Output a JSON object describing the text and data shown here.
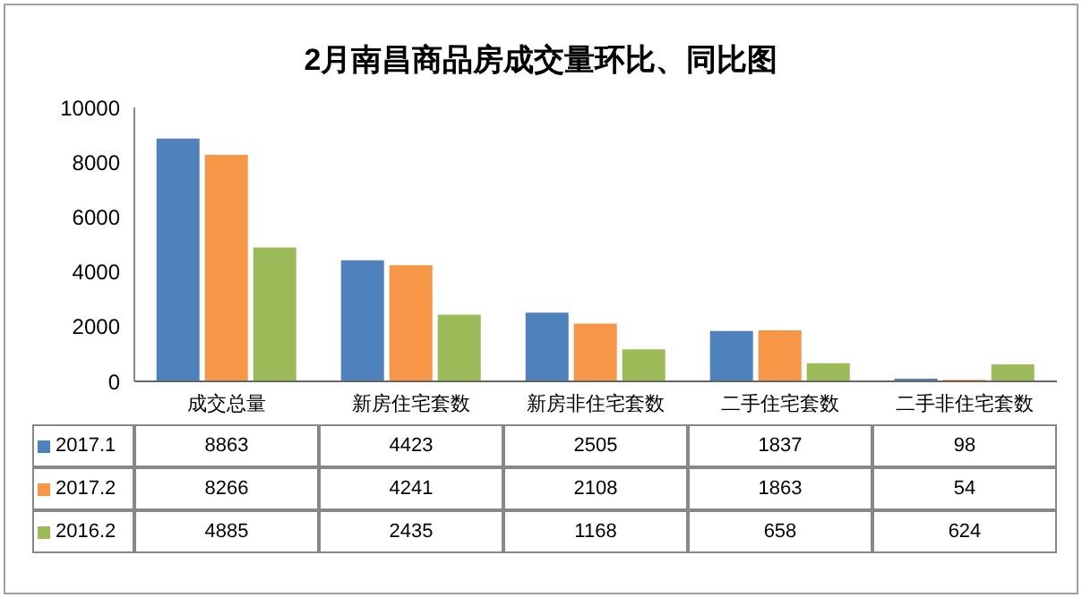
{
  "chart_data": {
    "type": "bar",
    "title": "2月南昌商品房成交量环比、同比图",
    "categories": [
      "成交总量",
      "新房住宅套数",
      "新房非住宅套数",
      "二手住宅套数",
      "二手非住宅套数"
    ],
    "series": [
      {
        "name": "2017.1",
        "color": "#4f81bd",
        "values": [
          8863,
          4423,
          2505,
          1837,
          98
        ]
      },
      {
        "name": "2017.2",
        "color": "#f79646",
        "values": [
          8266,
          4241,
          2108,
          1863,
          54
        ]
      },
      {
        "name": "2016.2",
        "color": "#9bbb59",
        "values": [
          4885,
          2435,
          1168,
          658,
          624
        ]
      }
    ],
    "ylim": [
      0,
      10000
    ],
    "yticks": [
      0,
      2000,
      4000,
      6000,
      8000,
      10000
    ],
    "data_labels": true,
    "legend": "bottom left",
    "grid": false
  }
}
